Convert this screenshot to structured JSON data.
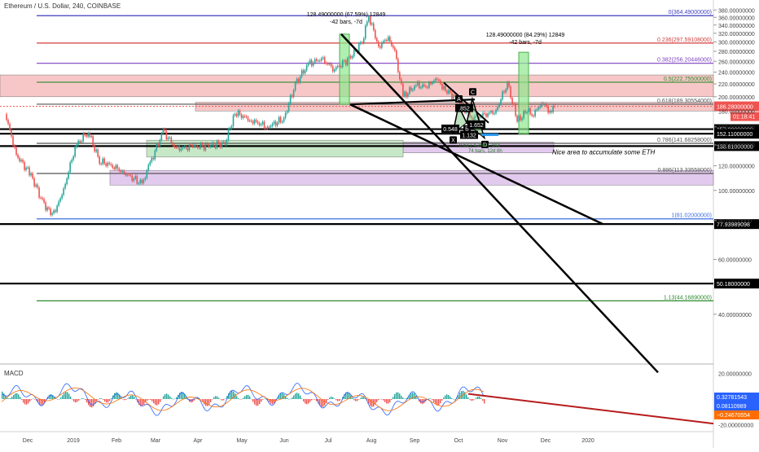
{
  "header": {
    "title": "Ethereum / U.S. Dollar, 240, COINBASE"
  },
  "macd_label": "MACD",
  "chart_data": [
    {
      "type": "candlestick",
      "title": "Ethereum / U.S. Dollar, 240, COINBASE",
      "ylim": [
        28,
        390
      ],
      "ylog": true,
      "grid": false,
      "y_ticks": [
        "380.00000000",
        "360.00000000",
        "340.00000000",
        "320.00000000",
        "300.00000000",
        "280.00000000",
        "260.00000000",
        "240.00000000",
        "220.00000000",
        "200.00000000",
        "180.00000000",
        "160.00000000",
        "140.00000000",
        "120.00000000",
        "100.00000000",
        "80.00000000",
        "60.00000000",
        "40.00000000"
      ],
      "y_tick_values": [
        380,
        360,
        340,
        320,
        300,
        280,
        260,
        240,
        220,
        200,
        180,
        160,
        140,
        120,
        100,
        80,
        60,
        40
      ],
      "x_ticks": [
        "Dec",
        "2019",
        "Feb",
        "Mar",
        "Apr",
        "May",
        "Jun",
        "Jul",
        "Aug",
        "Sep",
        "Oct",
        "Nov",
        "Dec",
        "2020"
      ],
      "price_path": [
        {
          "date": "2018-11-15",
          "price": 178
        },
        {
          "date": "2018-11-22",
          "price": 130
        },
        {
          "date": "2018-12-01",
          "price": 112
        },
        {
          "date": "2018-12-08",
          "price": 92
        },
        {
          "date": "2018-12-14",
          "price": 83
        },
        {
          "date": "2018-12-20",
          "price": 96
        },
        {
          "date": "2018-12-28",
          "price": 138
        },
        {
          "date": "2019-01-05",
          "price": 155
        },
        {
          "date": "2019-01-12",
          "price": 124
        },
        {
          "date": "2019-01-20",
          "price": 120
        },
        {
          "date": "2019-01-27",
          "price": 114
        },
        {
          "date": "2019-02-07",
          "price": 105
        },
        {
          "date": "2019-02-12",
          "price": 122
        },
        {
          "date": "2019-02-20",
          "price": 155
        },
        {
          "date": "2019-02-28",
          "price": 136
        },
        {
          "date": "2019-03-10",
          "price": 138
        },
        {
          "date": "2019-03-20",
          "price": 139
        },
        {
          "date": "2019-03-30",
          "price": 142
        },
        {
          "date": "2019-04-05",
          "price": 178
        },
        {
          "date": "2019-04-15",
          "price": 168
        },
        {
          "date": "2019-04-25",
          "price": 160
        },
        {
          "date": "2019-05-05",
          "price": 170
        },
        {
          "date": "2019-05-12",
          "price": 220
        },
        {
          "date": "2019-05-20",
          "price": 255
        },
        {
          "date": "2019-05-28",
          "price": 265
        },
        {
          "date": "2019-06-05",
          "price": 245
        },
        {
          "date": "2019-06-15",
          "price": 268
        },
        {
          "date": "2019-06-22",
          "price": 300
        },
        {
          "date": "2019-06-26",
          "price": 364
        },
        {
          "date": "2019-07-02",
          "price": 290
        },
        {
          "date": "2019-07-08",
          "price": 310
        },
        {
          "date": "2019-07-12",
          "price": 280
        },
        {
          "date": "2019-07-17",
          "price": 200
        },
        {
          "date": "2019-07-25",
          "price": 218
        },
        {
          "date": "2019-08-01",
          "price": 215
        },
        {
          "date": "2019-08-06",
          "price": 230
        },
        {
          "date": "2019-08-12",
          "price": 210
        },
        {
          "date": "2019-08-20",
          "price": 195
        },
        {
          "date": "2019-08-28",
          "price": 170
        },
        {
          "date": "2019-09-05",
          "price": 175
        },
        {
          "date": "2019-09-12",
          "price": 180
        },
        {
          "date": "2019-09-19",
          "price": 222
        },
        {
          "date": "2019-09-25",
          "price": 167
        },
        {
          "date": "2019-10-01",
          "price": 180
        },
        {
          "date": "2019-10-05",
          "price": 175
        },
        {
          "date": "2019-10-10",
          "price": 192
        },
        {
          "date": "2019-10-15",
          "price": 180
        },
        {
          "date": "2019-10-18",
          "price": 186
        }
      ],
      "fib_levels": [
        {
          "ratio": "0",
          "value": 364.49,
          "label": "0(364.49000000)",
          "color": "#3f3fc0"
        },
        {
          "ratio": "0.236",
          "value": 297.59108,
          "label": "0.236(297.59108000)",
          "color": "#d33c3c"
        },
        {
          "ratio": "0.382",
          "value": 256.20446,
          "label": "0.382(256.20446000)",
          "color": "#7b3fc0"
        },
        {
          "ratio": "0.5",
          "value": 222.755,
          "label": "0.5(222.75500000)",
          "color": "#2e8b2e"
        },
        {
          "ratio": "0.618",
          "value": 189.30554,
          "label": "0.618(189.30554000)",
          "color": "#555555"
        },
        {
          "ratio": "0.786",
          "value": 141.68258,
          "label": "0.786(141.68258000)",
          "color": "#555555"
        },
        {
          "ratio": "0.886",
          "value": 113.33558,
          "label": "0.886(113.33558000)",
          "color": "#555555"
        },
        {
          "ratio": "1",
          "value": 81.02,
          "label": "1(81.02000000)",
          "color": "#3f6fe0"
        },
        {
          "ratio": "1.13",
          "value": 44.1689,
          "label": "1.13(44.16890000)",
          "color": "#2e8b2e"
        }
      ],
      "horizontal_lines": [
        {
          "value": 157.38,
          "label": "157.38000000"
        },
        {
          "value": 152.11,
          "label": "152.11000000"
        },
        {
          "value": 138.81,
          "label": "138.81000000"
        },
        {
          "value": 77.93989098,
          "label": "77.93989098"
        },
        {
          "value": 50.18,
          "label": "50.18000000"
        }
      ],
      "current_price": {
        "value": 186.28,
        "label": "186.28000000",
        "countdown": "01:18:41",
        "color": "#ef5350"
      },
      "zones": [
        {
          "from": 200,
          "to": 235,
          "color": "#f4b4b4"
        },
        {
          "from": 180,
          "to": 192,
          "color": "#f4b4b4"
        },
        {
          "from": 132,
          "to": 143,
          "color": "#d8b8e8"
        },
        {
          "from": 104,
          "to": 116,
          "color": "#d8b8e8"
        },
        {
          "from": 128,
          "to": 145,
          "color": "#b4e0b4"
        }
      ],
      "measurements": [
        {
          "text": "128.49000000 (67.59%) 12849",
          "sub": "-42 bars, -7d"
        },
        {
          "text": "128.49000000 (84.29%) 12849",
          "sub": "-42 bars, -7d"
        }
      ],
      "pattern_labels": [
        "X",
        "A",
        "B",
        "C",
        "D"
      ],
      "pattern_ratios": [
        "0.548",
        "1.652",
        "1.132",
        ".852"
      ],
      "note": "Nice area to accumulate some ETH",
      "measure_note": "-9.53 (-4.26%) -943",
      "measure_note2": "74 bars, 12d 8h"
    },
    {
      "type": "line",
      "title": "MACD",
      "ylim": [
        -24,
        24
      ],
      "y_ticks": [
        "20.00000000",
        "-20.00000000"
      ],
      "y_tick_values": [
        20,
        -20
      ],
      "values_shown": [
        {
          "value": 0.32781543,
          "label": "0.32781543",
          "color": "#2962ff"
        },
        {
          "value": 0.08110989,
          "label": "0.08110989",
          "color": "#2962ff"
        },
        {
          "value": -0.24670554,
          "label": "−0.24670554",
          "color": "#ff6d00"
        }
      ]
    }
  ]
}
